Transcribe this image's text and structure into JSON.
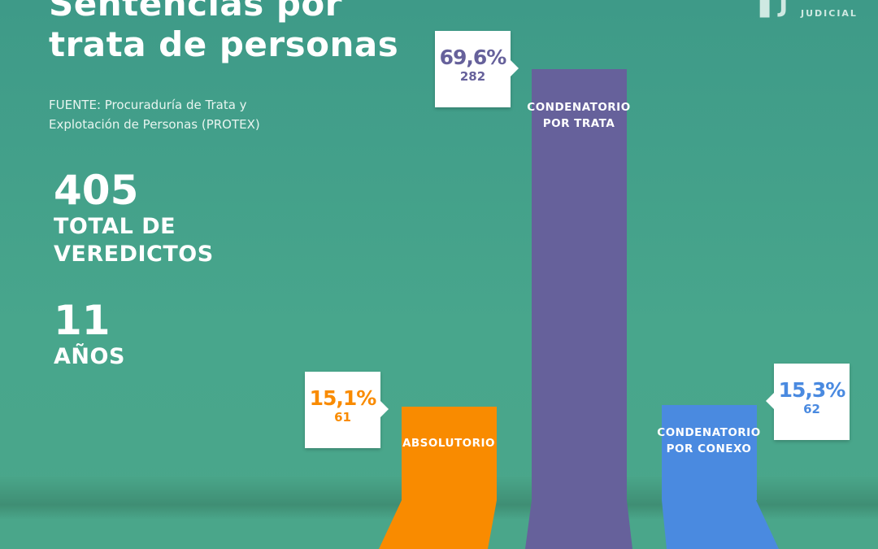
{
  "title": "Sentencias por trata de personas",
  "source": "FUENTE: Procuraduría de Trata y Explotación de Personas (PROTEX)",
  "stats": [
    {
      "value": "405",
      "label": "TOTAL DE VEREDICTOS"
    },
    {
      "value": "11",
      "label": "AÑOS"
    }
  ],
  "logo": {
    "text": "JUDICIAL"
  },
  "chart_data": {
    "type": "bar",
    "categories": [
      "ABSOLUTORIO",
      "CONDENATORIO POR TRATA",
      "CONDENATORIO POR CONEXO"
    ],
    "values": [
      61,
      282,
      62
    ],
    "percent_labels": [
      "15,1%",
      "69,6%",
      "15,3%"
    ],
    "colors": [
      "#f98b00",
      "#66619b",
      "#4a8ae0"
    ],
    "total": 405
  }
}
